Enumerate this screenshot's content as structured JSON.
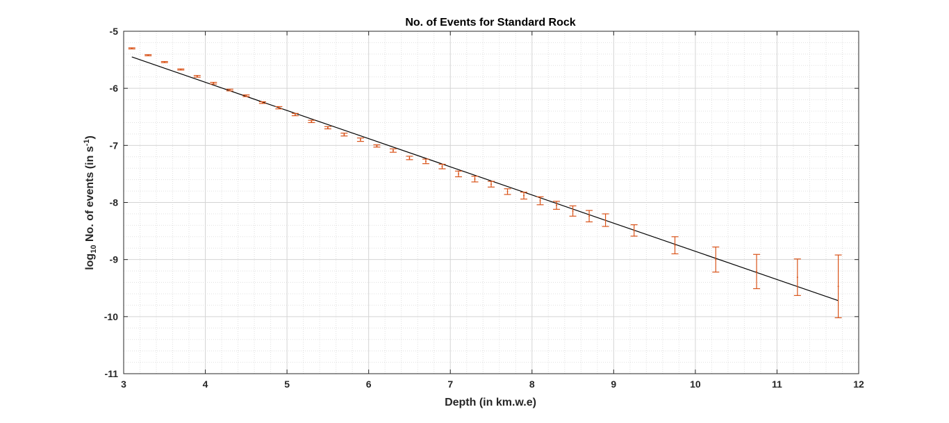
{
  "chart_data": {
    "type": "scatter",
    "title": "No. of Events for Standard Rock",
    "xlabel": "Depth (in km.w.e)",
    "ylabel_parts": {
      "pre": "log",
      "sub": "10",
      "mid": " No. of events (in s",
      "sup": "-1",
      "post": ")"
    },
    "xlim": [
      3,
      12
    ],
    "ylim": [
      -11,
      -5
    ],
    "xticks": [
      3,
      4,
      5,
      6,
      7,
      8,
      9,
      10,
      11,
      12
    ],
    "yticks": [
      -5,
      -6,
      -7,
      -8,
      -9,
      -10,
      -11
    ],
    "grid": true,
    "minor_grid": true,
    "colors": {
      "data": "#d95319",
      "fit": "#000000",
      "axis": "#262626",
      "grid": "#dfdfdf"
    },
    "series": [
      {
        "kind": "errorbar",
        "x": [
          3.1,
          3.3,
          3.5,
          3.7,
          3.9,
          4.1,
          4.3,
          4.5,
          4.7,
          4.9,
          5.1,
          5.3,
          5.5,
          5.7,
          5.9,
          6.1,
          6.3,
          6.5,
          6.7,
          6.9,
          7.1,
          7.3,
          7.5,
          7.7,
          7.9,
          8.1,
          8.3,
          8.5,
          8.7,
          8.9,
          9.25,
          9.75,
          10.25,
          10.75,
          11.25,
          11.75
        ],
        "y": [
          -5.3,
          -5.42,
          -5.54,
          -5.67,
          -5.79,
          -5.91,
          -6.03,
          -6.13,
          -6.25,
          -6.34,
          -6.46,
          -6.58,
          -6.69,
          -6.81,
          -6.9,
          -7.01,
          -7.09,
          -7.22,
          -7.28,
          -7.37,
          -7.5,
          -7.59,
          -7.68,
          -7.81,
          -7.88,
          -7.97,
          -8.05,
          -8.15,
          -8.24,
          -8.31,
          -8.49,
          -8.75,
          -9.0,
          -9.21,
          -9.31,
          -9.47
        ],
        "err": [
          0.01,
          0.01,
          0.01,
          0.01,
          0.015,
          0.015,
          0.015,
          0.015,
          0.015,
          0.02,
          0.02,
          0.02,
          0.02,
          0.025,
          0.03,
          0.02,
          0.03,
          0.03,
          0.04,
          0.04,
          0.05,
          0.05,
          0.05,
          0.05,
          0.06,
          0.07,
          0.07,
          0.09,
          0.1,
          0.11,
          0.1,
          0.15,
          0.22,
          0.3,
          0.32,
          0.55
        ]
      },
      {
        "kind": "fit-line",
        "x": [
          3.1,
          11.75
        ],
        "y": [
          -5.45,
          -9.72
        ]
      }
    ]
  }
}
